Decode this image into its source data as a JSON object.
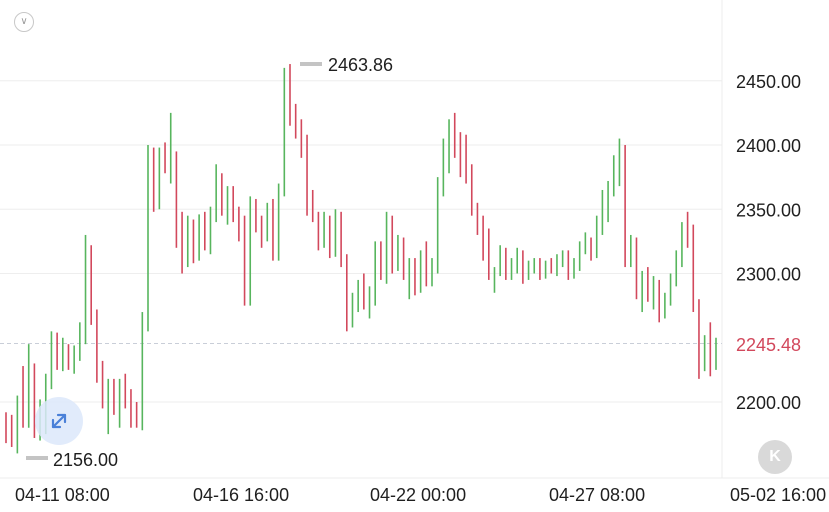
{
  "chart_data": {
    "type": "ohlc",
    "title": "",
    "xlabel": "",
    "ylabel": "",
    "ylim": [
      2160,
      2480
    ],
    "yticks": [
      "2450.00",
      "2400.00",
      "2350.00",
      "2300.00",
      "2200.00"
    ],
    "xticks": [
      "04-11 08:00",
      "04-16 16:00",
      "04-22 00:00",
      "04-27 08:00",
      "05-02 16:00"
    ],
    "current_price": "2245.48",
    "high_label": "2463.86",
    "low_label": "2156.00",
    "up_color": "#57b55d",
    "down_color": "#d2485c",
    "bars": [
      [
        2185,
        2192,
        2168,
        2181
      ],
      [
        2181,
        2190,
        2165,
        2175
      ],
      [
        2172,
        2205,
        2160,
        2200
      ],
      [
        2200,
        2228,
        2180,
        2188
      ],
      [
        2188,
        2245,
        2180,
        2222
      ],
      [
        2222,
        2230,
        2172,
        2180
      ],
      [
        2180,
        2202,
        2170,
        2195
      ],
      [
        2196,
        2222,
        2175,
        2218
      ],
      [
        2220,
        2255,
        2210,
        2250
      ],
      [
        2250,
        2254,
        2225,
        2232
      ],
      [
        2232,
        2250,
        2224,
        2244
      ],
      [
        2244,
        2245,
        2225,
        2232
      ],
      [
        2232,
        2244,
        2222,
        2240
      ],
      [
        2240,
        2262,
        2232,
        2255
      ],
      [
        2255,
        2330,
        2245,
        2320
      ],
      [
        2320,
        2322,
        2260,
        2268
      ],
      [
        2268,
        2272,
        2215,
        2220
      ],
      [
        2220,
        2232,
        2195,
        2202
      ],
      [
        2202,
        2218,
        2175,
        2212
      ],
      [
        2212,
        2218,
        2190,
        2195
      ],
      [
        2195,
        2218,
        2180,
        2210
      ],
      [
        2210,
        2222,
        2195,
        2200
      ],
      [
        2200,
        2210,
        2180,
        2190
      ],
      [
        2190,
        2200,
        2180,
        2185
      ],
      [
        2185,
        2270,
        2178,
        2262
      ],
      [
        2262,
        2400,
        2255,
        2393
      ],
      [
        2393,
        2398,
        2348,
        2354
      ],
      [
        2354,
        2398,
        2350,
        2394
      ],
      [
        2394,
        2402,
        2378,
        2380
      ],
      [
        2380,
        2425,
        2370,
        2390
      ],
      [
        2390,
        2395,
        2320,
        2325
      ],
      [
        2325,
        2348,
        2300,
        2308
      ],
      [
        2308,
        2345,
        2305,
        2338
      ],
      [
        2338,
        2342,
        2308,
        2315
      ],
      [
        2315,
        2346,
        2310,
        2342
      ],
      [
        2342,
        2348,
        2318,
        2322
      ],
      [
        2322,
        2352,
        2315,
        2348
      ],
      [
        2348,
        2385,
        2340,
        2375
      ],
      [
        2375,
        2378,
        2345,
        2355
      ],
      [
        2355,
        2368,
        2338,
        2360
      ],
      [
        2360,
        2368,
        2340,
        2345
      ],
      [
        2345,
        2352,
        2325,
        2330
      ],
      [
        2330,
        2345,
        2275,
        2282
      ],
      [
        2282,
        2360,
        2275,
        2352
      ],
      [
        2352,
        2358,
        2332,
        2340
      ],
      [
        2340,
        2345,
        2320,
        2328
      ],
      [
        2328,
        2355,
        2325,
        2350
      ],
      [
        2350,
        2358,
        2310,
        2318
      ],
      [
        2318,
        2370,
        2310,
        2365
      ],
      [
        2365,
        2460,
        2360,
        2455
      ],
      [
        2455,
        2463,
        2415,
        2425
      ],
      [
        2425,
        2432,
        2405,
        2418
      ],
      [
        2418,
        2420,
        2390,
        2395
      ],
      [
        2395,
        2408,
        2345,
        2352
      ],
      [
        2352,
        2365,
        2340,
        2344
      ],
      [
        2344,
        2348,
        2318,
        2325
      ],
      [
        2325,
        2348,
        2320,
        2342
      ],
      [
        2342,
        2345,
        2312,
        2318
      ],
      [
        2318,
        2350,
        2313,
        2345
      ],
      [
        2345,
        2348,
        2305,
        2310
      ],
      [
        2310,
        2315,
        2255,
        2262
      ],
      [
        2262,
        2285,
        2258,
        2280
      ],
      [
        2280,
        2295,
        2270,
        2292
      ],
      [
        2292,
        2300,
        2272,
        2280
      ],
      [
        2280,
        2290,
        2265,
        2282
      ],
      [
        2282,
        2325,
        2275,
        2318
      ],
      [
        2318,
        2325,
        2295,
        2298
      ],
      [
        2298,
        2348,
        2292,
        2342
      ],
      [
        2342,
        2345,
        2300,
        2308
      ],
      [
        2308,
        2330,
        2302,
        2325
      ],
      [
        2325,
        2328,
        2295,
        2300
      ],
      [
        2300,
        2312,
        2280,
        2308
      ],
      [
        2308,
        2312,
        2283,
        2290
      ],
      [
        2290,
        2318,
        2285,
        2312
      ],
      [
        2312,
        2325,
        2290,
        2298
      ],
      [
        2298,
        2312,
        2290,
        2305
      ],
      [
        2305,
        2375,
        2300,
        2368
      ],
      [
        2368,
        2405,
        2360,
        2395
      ],
      [
        2395,
        2420,
        2378,
        2410
      ],
      [
        2410,
        2425,
        2390,
        2395
      ],
      [
        2395,
        2410,
        2375,
        2390
      ],
      [
        2390,
        2408,
        2370,
        2380
      ],
      [
        2380,
        2385,
        2345,
        2352
      ],
      [
        2352,
        2355,
        2330,
        2338
      ],
      [
        2338,
        2345,
        2310,
        2325
      ],
      [
        2325,
        2335,
        2295,
        2300
      ],
      [
        2300,
        2305,
        2285,
        2302
      ],
      [
        2302,
        2322,
        2298,
        2318
      ],
      [
        2318,
        2320,
        2295,
        2302
      ],
      [
        2302,
        2312,
        2295,
        2308
      ],
      [
        2308,
        2320,
        2300,
        2315
      ],
      [
        2315,
        2318,
        2292,
        2298
      ],
      [
        2298,
        2310,
        2295,
        2305
      ],
      [
        2305,
        2312,
        2300,
        2310
      ],
      [
        2310,
        2312,
        2295,
        2298
      ],
      [
        2298,
        2310,
        2296,
        2305
      ],
      [
        2305,
        2312,
        2300,
        2302
      ],
      [
        2302,
        2315,
        2298,
        2310
      ],
      [
        2310,
        2318,
        2305,
        2312
      ],
      [
        2312,
        2318,
        2295,
        2300
      ],
      [
        2300,
        2312,
        2296,
        2308
      ],
      [
        2308,
        2325,
        2302,
        2320
      ],
      [
        2320,
        2332,
        2315,
        2325
      ],
      [
        2325,
        2328,
        2310,
        2318
      ],
      [
        2318,
        2345,
        2312,
        2340
      ],
      [
        2340,
        2365,
        2330,
        2358
      ],
      [
        2358,
        2372,
        2340,
        2368
      ],
      [
        2368,
        2392,
        2360,
        2385
      ],
      [
        2385,
        2405,
        2368,
        2395
      ],
      [
        2395,
        2400,
        2305,
        2312
      ],
      [
        2312,
        2330,
        2305,
        2325
      ],
      [
        2325,
        2328,
        2280,
        2290
      ],
      [
        2290,
        2302,
        2270,
        2298
      ],
      [
        2298,
        2305,
        2278,
        2285
      ],
      [
        2285,
        2298,
        2272,
        2292
      ],
      [
        2292,
        2295,
        2262,
        2270
      ],
      [
        2270,
        2285,
        2265,
        2282
      ],
      [
        2282,
        2300,
        2275,
        2296
      ],
      [
        2296,
        2318,
        2290,
        2312
      ],
      [
        2312,
        2340,
        2305,
        2335
      ],
      [
        2335,
        2348,
        2320,
        2330
      ],
      [
        2330,
        2338,
        2270,
        2275
      ],
      [
        2275,
        2280,
        2218,
        2228
      ],
      [
        2228,
        2252,
        2224,
        2248
      ],
      [
        2248,
        2262,
        2220,
        2232
      ],
      [
        2232,
        2250,
        2225,
        2245
      ]
    ]
  }
}
